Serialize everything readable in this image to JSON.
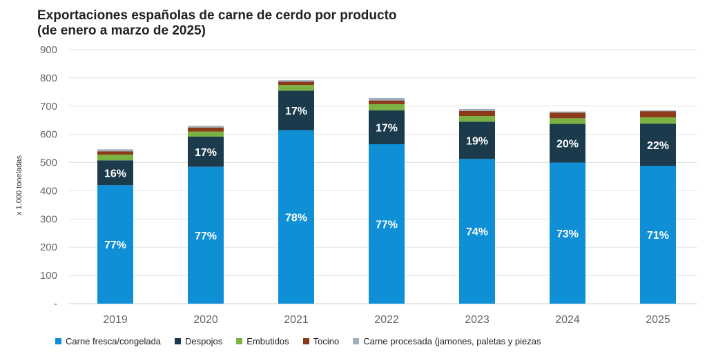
{
  "chart_data": {
    "type": "bar",
    "stacked": true,
    "title": "Exportaciones españolas de carne de cerdo por producto",
    "subtitle": "(de enero a marzo de 2025)",
    "ylabel": "x 1.000 toneladas",
    "xlabel": "",
    "ylim": [
      0,
      900
    ],
    "yticks": [
      "-",
      "100",
      "200",
      "300",
      "400",
      "500",
      "600",
      "700",
      "800",
      "900"
    ],
    "grid": true,
    "legend_position": "bottom",
    "categories": [
      "2019",
      "2020",
      "2021",
      "2022",
      "2023",
      "2024",
      "2025"
    ],
    "series": [
      {
        "name": "Carne fresca/congelada",
        "color": "#0e8fd6",
        "values": [
          420,
          485,
          615,
          565,
          513,
          500,
          488
        ],
        "labels": [
          "77%",
          "77%",
          "78%",
          "77%",
          "74%",
          "73%",
          "71%"
        ]
      },
      {
        "name": "Despojos",
        "color": "#1b3a4b",
        "values": [
          88,
          107,
          140,
          120,
          132,
          137,
          150
        ],
        "labels": [
          "16%",
          "17%",
          "17%",
          "17%",
          "19%",
          "20%",
          "22%"
        ]
      },
      {
        "name": "Embutidos",
        "color": "#7ab342",
        "values": [
          20,
          18,
          20,
          22,
          20,
          20,
          22
        ],
        "labels": [
          "",
          "",
          "",
          "",
          "",
          "",
          ""
        ]
      },
      {
        "name": "Tocino",
        "color": "#8b3a1a",
        "values": [
          12,
          14,
          12,
          13,
          18,
          20,
          22
        ],
        "labels": [
          "",
          "",
          "",
          "",
          "",
          "",
          ""
        ]
      },
      {
        "name": "Carne procesada (jamones, paletas y piezas",
        "color": "#9eb0bd",
        "values": [
          7,
          6,
          5,
          9,
          7,
          4,
          3
        ],
        "labels": [
          "",
          "",
          "",
          "",
          "",
          "",
          ""
        ]
      }
    ]
  }
}
